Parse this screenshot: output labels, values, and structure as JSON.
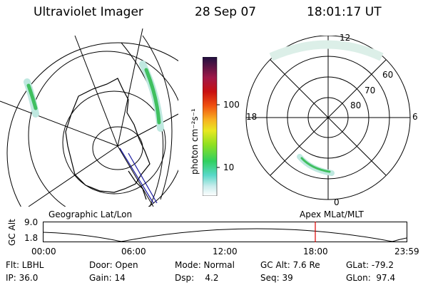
{
  "header": {
    "instrument": "Ultraviolet Imager",
    "date": "28 Sep 07",
    "time": "18:01:17 UT"
  },
  "colorbar": {
    "label": "photon cm⁻²s⁻¹",
    "ticks": [
      "100",
      "10"
    ]
  },
  "polar_plot": {
    "mlt_labels": {
      "top": "12",
      "left": "18",
      "right": "6",
      "bottom": "0"
    },
    "lat_labels": [
      "60",
      "70",
      "80"
    ]
  },
  "projection_labels": {
    "left": "Geographic Lat/Lon",
    "right": "Apex MLat/MLT"
  },
  "altitude_plot": {
    "axis_label": "GC Alt",
    "y_ticks": [
      "9.0",
      "1.8"
    ],
    "time_ticks": [
      "00:00",
      "06:00",
      "12:00",
      "18:00",
      "23:59"
    ]
  },
  "status": {
    "row1": [
      {
        "label": "Flt: LBHL"
      },
      {
        "label": "Door: Open"
      },
      {
        "label": "Mode: Normal"
      },
      {
        "label": "GC Alt: 7.6 Re"
      },
      {
        "label": "GLat: -79.2"
      }
    ],
    "row2": [
      {
        "label": "IP: 36.0"
      },
      {
        "label": "Gain: 14"
      },
      {
        "label": "Dsp:    4.2"
      },
      {
        "label": "Seq: 39"
      },
      {
        "label": "GLon:  97.4"
      }
    ]
  },
  "colors": {
    "marker": "#dd0000",
    "aurora_light": "#bfe8e0",
    "aurora_bright": "#40c060"
  }
}
